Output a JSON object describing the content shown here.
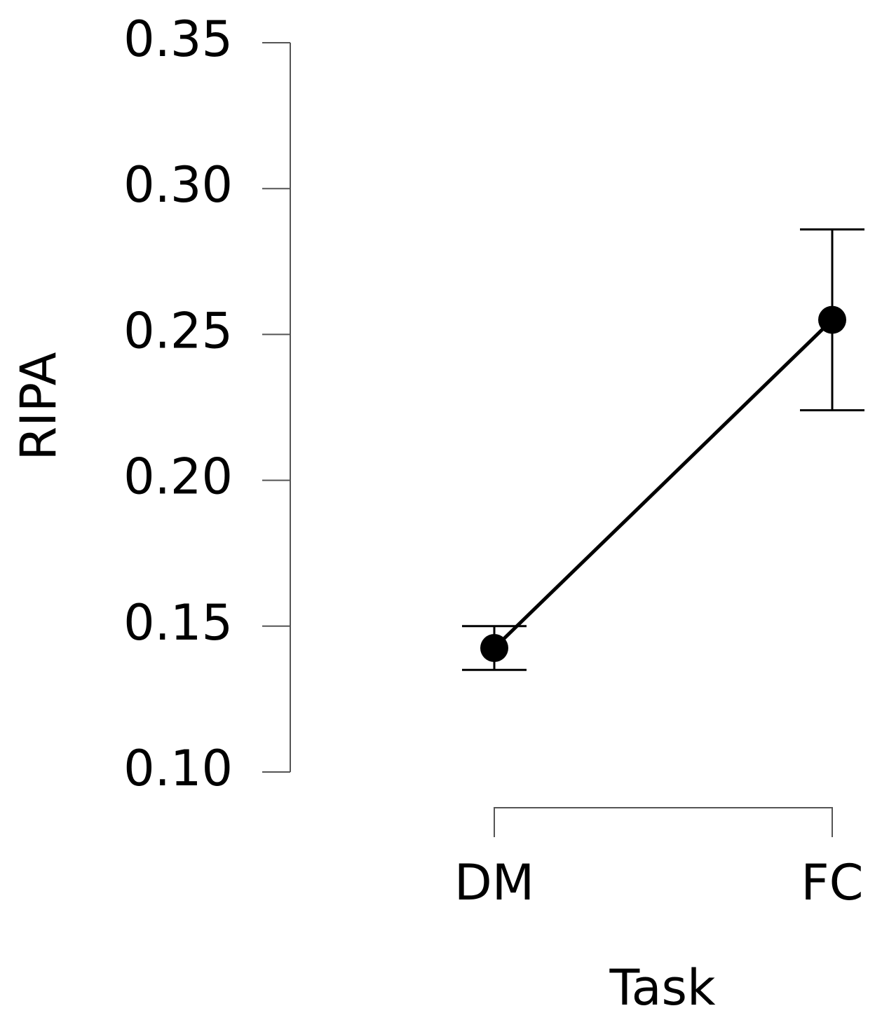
{
  "chart_data": {
    "type": "line",
    "categories": [
      "DM",
      "FC"
    ],
    "values": [
      0.1425,
      0.255
    ],
    "errors": [
      0.0075,
      0.031
    ],
    "color": "#000000",
    "ylim": [
      0.1,
      0.35
    ],
    "yticks": [
      {
        "value": 0.1,
        "label": "0.10"
      },
      0.15,
      {
        "value": 0.2,
        "label": "0.20"
      },
      0.25,
      {
        "value": 0.3,
        "label": "0.30"
      },
      0.35
    ],
    "xlabel": "Task",
    "ylabel": "RIPA",
    "grid": false
  }
}
